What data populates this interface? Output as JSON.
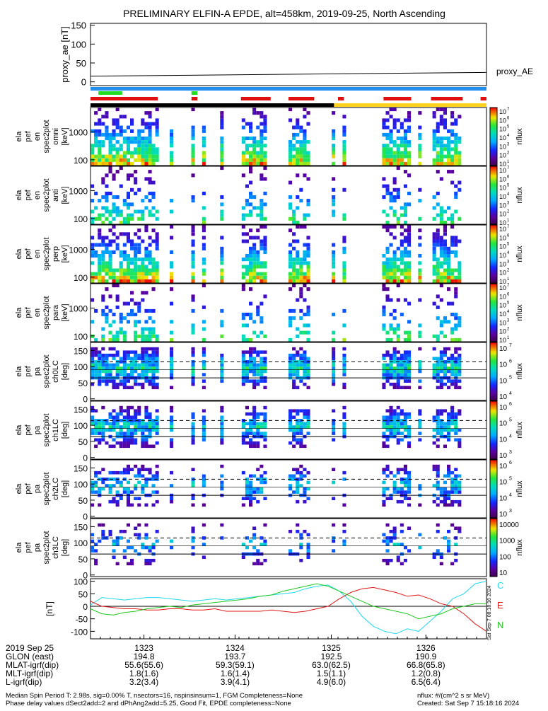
{
  "header": {
    "title": "PRELIMINARY ELFIN-A EPDE, alt=458km, 2019-09-25, North Ascending"
  },
  "colors": {
    "status_blue": "#1e8ff0",
    "status_green": "#22dd22",
    "status_red": "#e01010",
    "status_black": "#000000",
    "status_yellow": "#ffd21e",
    "mag_c": "#22d8ee",
    "mag_e": "#e01818",
    "mag_n": "#20c820"
  },
  "chart_data": [
    {
      "type": "line",
      "panel": "proxy_ae",
      "ylabel": "proxy_ae [nT]",
      "legend": "proxy_AE",
      "yticks": [
        "150",
        "100",
        "50",
        "0"
      ],
      "ylim": [
        -10,
        155
      ],
      "series": [
        {
          "name": "proxy_AE",
          "x": [
            0,
            1
          ],
          "values": [
            15,
            25
          ]
        }
      ]
    },
    {
      "type": "heatmap",
      "panel": "en_omni",
      "ylabel": [
        "ela",
        "pef",
        "en",
        "spec2plot",
        "omni",
        "[keV]"
      ],
      "yticks": [
        "1000",
        "100"
      ],
      "colorbar": {
        "label": "nflux",
        "ticks": [
          "10",
          "10",
          "10",
          "10",
          "10",
          "10",
          "10"
        ],
        "exponents": [
          "7",
          "6",
          "5",
          "4",
          "3",
          "2",
          "1"
        ]
      }
    },
    {
      "type": "heatmap",
      "panel": "en_anti",
      "ylabel": [
        "ela",
        "pef",
        "en",
        "spec2plot",
        "anti",
        "[keV]"
      ],
      "yticks": [
        "1000",
        "100"
      ],
      "colorbar": {
        "label": "nflux",
        "ticks": [
          "10",
          "10",
          "10",
          "10",
          "10",
          "10",
          "10"
        ],
        "exponents": [
          "7",
          "6",
          "5",
          "4",
          "3",
          "2",
          "1"
        ]
      }
    },
    {
      "type": "heatmap",
      "panel": "en_perp",
      "ylabel": [
        "ela",
        "pef",
        "en",
        "spec2plot",
        "perp",
        "[keV]"
      ],
      "yticks": [
        "1000",
        "100"
      ],
      "colorbar": {
        "label": "nflux",
        "ticks": [
          "10",
          "10",
          "10",
          "10",
          "10",
          "10",
          "10"
        ],
        "exponents": [
          "7",
          "6",
          "5",
          "4",
          "3",
          "2",
          "1"
        ]
      }
    },
    {
      "type": "heatmap",
      "panel": "en_para",
      "ylabel": [
        "ela",
        "pef",
        "en",
        "spec2plot",
        "para",
        "[keV]"
      ],
      "yticks": [
        "1000",
        "100"
      ],
      "colorbar": {
        "label": "nflux",
        "ticks": [
          "10",
          "10",
          "10",
          "10",
          "10",
          "10",
          "10"
        ],
        "exponents": [
          "7",
          "6",
          "5",
          "4",
          "3",
          "2",
          "1"
        ]
      }
    },
    {
      "type": "heatmap",
      "panel": "pa_ch0LC",
      "ylabel": [
        "ela",
        "pef",
        "pa",
        "spec2plot",
        "ch0LC",
        "[deg]"
      ],
      "yticks": [
        "150",
        "100",
        "50",
        "0"
      ],
      "colorbar": {
        "label": "nflux",
        "ticks": [
          "10",
          "10",
          "10",
          "10"
        ],
        "exponents": [
          "7",
          "6",
          "5",
          "4"
        ]
      }
    },
    {
      "type": "heatmap",
      "panel": "pa_ch1LC",
      "ylabel": [
        "ela",
        "pef",
        "pa",
        "spec2plot",
        "ch1LC",
        "[deg]"
      ],
      "yticks": [
        "150",
        "100",
        "50",
        "0"
      ],
      "colorbar": {
        "label": "nflux",
        "ticks": [
          "10",
          "10",
          "10",
          "10"
        ],
        "exponents": [
          "6",
          "5",
          "4",
          "3"
        ]
      }
    },
    {
      "type": "heatmap",
      "panel": "pa_ch2LC",
      "ylabel": [
        "ela",
        "pef",
        "pa",
        "spec2plot",
        "ch2LC",
        "[deg]"
      ],
      "yticks": [
        "150",
        "100",
        "50",
        "0"
      ],
      "colorbar": {
        "label": "nflux",
        "ticks": [
          "10",
          "10",
          "10",
          "10"
        ],
        "exponents": [
          "6",
          "5",
          "4",
          "3"
        ]
      }
    },
    {
      "type": "heatmap",
      "panel": "pa_ch3LC",
      "ylabel": [
        "ela",
        "pef",
        "pa",
        "spec2plot",
        "ch3LC",
        "[deg]"
      ],
      "yticks": [
        "150",
        "100",
        "50",
        "0"
      ],
      "colorbar": {
        "label": "nflux",
        "ticks": [
          "10000",
          "1000",
          "100",
          "10"
        ]
      }
    },
    {
      "type": "line",
      "panel": "mag",
      "ylabel": "[nT]",
      "yticks": [
        "100",
        "50",
        "0",
        "-50",
        "-100"
      ],
      "ylim": [
        -130,
        110
      ],
      "series": [
        {
          "name": "C",
          "values": [
            5,
            35,
            30,
            25,
            30,
            35,
            35,
            30,
            25,
            20,
            25,
            30,
            25,
            30,
            35,
            40,
            45,
            50,
            55,
            70,
            80,
            85,
            60,
            20,
            -40,
            -80,
            -100,
            -110,
            -90,
            -100,
            -60,
            -20,
            30,
            50,
            90,
            100
          ]
        },
        {
          "name": "E",
          "values": [
            20,
            0,
            -5,
            -10,
            -10,
            -15,
            -15,
            -10,
            -10,
            -15,
            -15,
            -10,
            -20,
            -20,
            -20,
            -20,
            -15,
            -20,
            -25,
            -20,
            -10,
            0,
            30,
            55,
            70,
            75,
            65,
            55,
            40,
            45,
            30,
            10,
            0,
            -30,
            -70,
            -100
          ]
        },
        {
          "name": "N",
          "values": [
            -10,
            -30,
            -35,
            -25,
            -20,
            -10,
            -5,
            0,
            -5,
            5,
            10,
            15,
            20,
            25,
            30,
            40,
            45,
            60,
            70,
            80,
            90,
            80,
            60,
            40,
            20,
            0,
            -10,
            -20,
            -30,
            -50,
            -40,
            -30,
            -10,
            0,
            10,
            10
          ]
        }
      ]
    }
  ],
  "xaxis": {
    "row_labels": [
      "2019 Sep 25",
      "GLON (east)",
      "MLAT-igrf(dip)",
      "MLT-igrf(dip)",
      "L-igrf(dip)"
    ],
    "ticks": [
      {
        "time": "1323",
        "glon": "194.8",
        "mlat": "55.6(55.6)",
        "mlt": "1.8(1.6)",
        "l": "3.2(3.4)"
      },
      {
        "time": "1324",
        "glon": "193.7",
        "mlat": "59.3(59.1)",
        "mlt": "1.6(1.4)",
        "l": "3.9(4.1)"
      },
      {
        "time": "1325",
        "glon": "192.5",
        "mlat": "63.0(62.5)",
        "mlt": "1.5(1.1)",
        "l": "4.9(6.0)"
      },
      {
        "time": "1326",
        "glon": "190.9",
        "mlat": "66.8(65.8)",
        "mlt": "1.2(0.8)",
        "l": "6.5(6.4)"
      }
    ]
  },
  "footer": {
    "line1_left": "Median Spin Period T: 2.98s, sig=0.00% T, nsectors=16, nspinsinsum=1, FGM Completeness=None",
    "line2_left": "Phase delay values dSect2add=2 and dPhAng2add=5.25, Good Fit, EPDE completeness=None",
    "line1_right": "nflux: #/(cm^2 s sr MeV)",
    "line2_right": "Created: Sat Sep  7 15:18:16 2024",
    "side_stamp": "Sat Sep  7 08:18:16 2024"
  }
}
